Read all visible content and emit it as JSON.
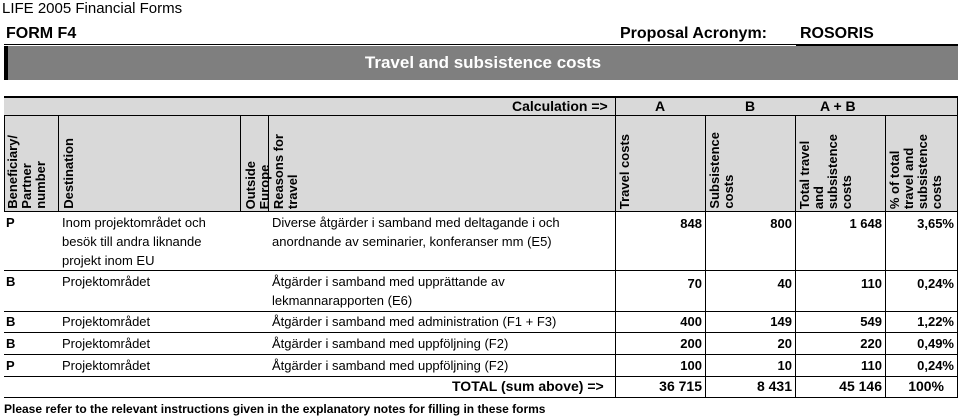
{
  "app": {
    "title": "LIFE 2005 Financial Forms"
  },
  "form": {
    "id": "FORM F4",
    "acronym_label": "Proposal Acronym:",
    "acronym_value": "ROSORIS",
    "title": "Travel and subsistence costs"
  },
  "calculation": {
    "label": "Calculation =>",
    "col_a": "A",
    "col_b": "B",
    "col_ab": "A + B"
  },
  "columns": {
    "beneficiary": [
      "Beneficiary/",
      "Partner",
      "number"
    ],
    "destination": "Destination",
    "outside": [
      "Outside",
      "Europe"
    ],
    "reasons": [
      "Reasons for",
      "travel"
    ],
    "travel_costs": "Travel costs",
    "subsistence": [
      "Subsistence",
      "costs"
    ],
    "total": [
      "Total travel",
      "and",
      "subsistence",
      "costs"
    ],
    "percent": [
      "% of total",
      "travel and",
      "subsistence",
      "costs"
    ]
  },
  "rows": [
    {
      "beneficiary": "P",
      "destination": [
        "Inom projektområdet och",
        "besök till andra liknande",
        "projekt inom EU"
      ],
      "reasons": [
        "Diverse åtgärder i samband med deltagande i och",
        "anordnande av seminarier, konferanser mm (E5)"
      ],
      "travel": "848",
      "subsistence": "800",
      "total": "1 648",
      "percent": "3,65%"
    },
    {
      "beneficiary": "B",
      "destination": [
        "Projektområdet"
      ],
      "reasons": [
        "Åtgärder i samband med upprättande av",
        "lekmannarapporten (E6)"
      ],
      "travel": "70",
      "subsistence": "40",
      "total": "110",
      "percent": "0,24%"
    },
    {
      "beneficiary": "B",
      "destination": [
        "Projektområdet"
      ],
      "reasons": [
        "Åtgärder i samband med administration (F1 + F3)"
      ],
      "travel": "400",
      "subsistence": "149",
      "total": "549",
      "percent": "1,22%"
    },
    {
      "beneficiary": "B",
      "destination": [
        "Projektområdet"
      ],
      "reasons": [
        "Åtgärder i samband med uppföljning (F2)"
      ],
      "travel": "200",
      "subsistence": "20",
      "total": "220",
      "percent": "0,49%"
    },
    {
      "beneficiary": "P",
      "destination": [
        "Projektområdet"
      ],
      "reasons": [
        "Åtgärder i samband med uppföljning (F2)"
      ],
      "travel": "100",
      "subsistence": "10",
      "total": "110",
      "percent": "0,24%"
    }
  ],
  "totals": {
    "label": "TOTAL (sum above) =>",
    "travel": "36 715",
    "subsistence": "8 431",
    "total": "45 146",
    "percent": "100%"
  },
  "footnote": "Please refer to the relevant instructions given in the explanatory notes for filling in these forms"
}
